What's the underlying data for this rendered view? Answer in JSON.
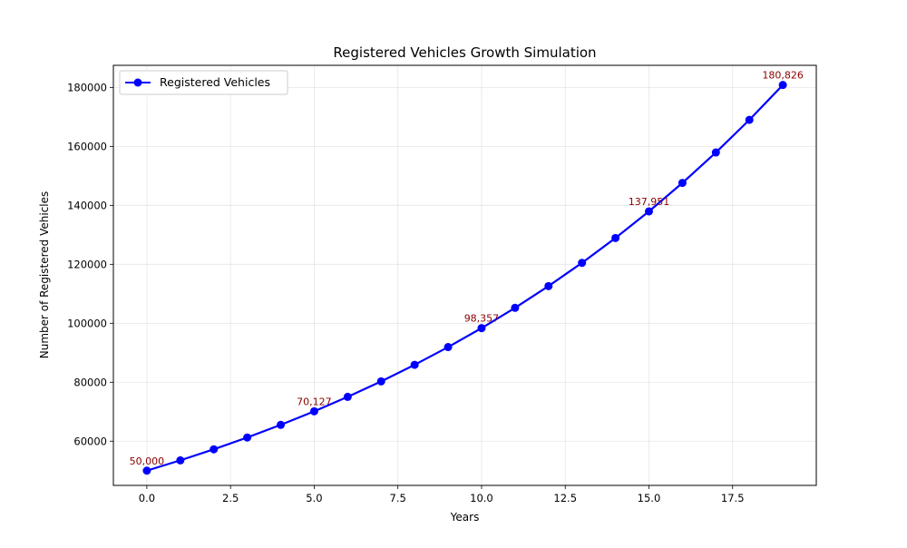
{
  "chart_data": {
    "type": "line",
    "title": "Registered Vehicles Growth Simulation",
    "xlabel": "Years",
    "ylabel": "Number of Registered Vehicles",
    "xlim": [
      -1,
      20
    ],
    "ylim": [
      45000,
      187500
    ],
    "x_ticks": [
      0,
      2.5,
      5,
      7.5,
      10,
      12.5,
      15,
      17.5
    ],
    "x_tick_labels": [
      "0.0",
      "2.5",
      "5.0",
      "7.5",
      "10.0",
      "12.5",
      "15.0",
      "17.5"
    ],
    "y_ticks": [
      60000,
      80000,
      100000,
      120000,
      140000,
      160000,
      180000
    ],
    "y_tick_labels": [
      "60000",
      "80000",
      "100000",
      "120000",
      "140000",
      "160000",
      "180000"
    ],
    "grid": true,
    "legend_position": "top-left",
    "series": [
      {
        "name": "Registered Vehicles",
        "color": "#0000ff",
        "marker": "circle",
        "x": [
          0,
          1,
          2,
          3,
          4,
          5,
          6,
          7,
          8,
          9,
          10,
          11,
          12,
          13,
          14,
          15,
          16,
          17,
          18,
          19
        ],
        "values": [
          50000,
          53500,
          57245,
          61252,
          65540,
          70127,
          75036,
          80289,
          85909,
          91923,
          98357,
          105242,
          112609,
          120492,
          128926,
          137951,
          147608,
          157940,
          168996,
          180826
        ]
      }
    ],
    "annotations": [
      {
        "x": 0,
        "y": 50000,
        "text": "50,000"
      },
      {
        "x": 5,
        "y": 70127,
        "text": "70,127"
      },
      {
        "x": 10,
        "y": 98357,
        "text": "98,357"
      },
      {
        "x": 15,
        "y": 137951,
        "text": "137,951"
      },
      {
        "x": 19,
        "y": 180826,
        "text": "180,826"
      }
    ],
    "annotation_color": "#8b0000"
  }
}
